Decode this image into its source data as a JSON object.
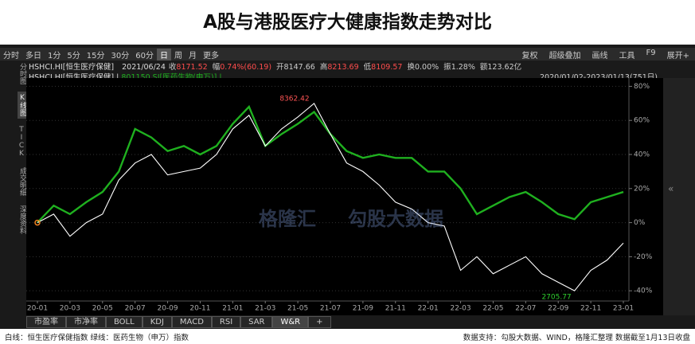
{
  "header": {
    "title": "A股与港股医疗大健康指数走势对比"
  },
  "toolbar": {
    "left": [
      "分时",
      "多日",
      "1分",
      "5分",
      "15分",
      "30分",
      "60分",
      "日",
      "周",
      "月",
      "更多"
    ],
    "active": "日",
    "right": [
      "复权",
      "超级叠加",
      "画线",
      "工具",
      "F9",
      "展开+"
    ]
  },
  "info": {
    "name": "HSHCI.HI[恒生医疗保健]",
    "date": "2021/06/24",
    "fields": [
      {
        "label": "收",
        "value": "8171.52"
      },
      {
        "label": "幅",
        "value": "0.74%(60.19)"
      },
      {
        "label": "开",
        "value": "8147.66"
      },
      {
        "label": "高",
        "value": "8213.69"
      },
      {
        "label": "低",
        "value": "8109.57"
      },
      {
        "label": "换",
        "value": "0.00%"
      },
      {
        "label": "振",
        "value": "1.28%"
      },
      {
        "label": "额",
        "value": "123.62亿"
      }
    ],
    "legend_prefix": "HSHCI.HI[恒生医疗保健] |",
    "legend_second": "801150.SI[医药生物(申万)] |",
    "range": "2020/01/02-2023/01/13(751日)"
  },
  "sidebar": [
    "分时图",
    "K线图",
    "TICK",
    "成交明细",
    "深度资料"
  ],
  "tabs": [
    "市盈率",
    "市净率",
    "BOLL",
    "KDJ",
    "MACD",
    "RSI",
    "SAR",
    "W&R",
    "+"
  ],
  "footer": {
    "left": "白线：恒生医疗保健指数 绿线：医药生物（申万）指数",
    "right": "数据支持：勾股大数据、WIND，格隆汇整理 数据截至1月13日收盘"
  },
  "watermarks": [
    "格隆汇",
    "勾股大数据"
  ],
  "chart_data": {
    "type": "line",
    "categories": [
      "20-01",
      null,
      "20-03",
      null,
      "20-05",
      null,
      "20-07",
      null,
      "20-09",
      null,
      "20-11",
      null,
      "21-01",
      null,
      "21-03",
      null,
      "21-05",
      null,
      "21-07",
      null,
      "21-09",
      null,
      "21-11",
      null,
      "22-01",
      null,
      "22-03",
      null,
      "22-05",
      null,
      "22-07",
      null,
      "22-09",
      null,
      "22-11",
      null,
      "23-01"
    ],
    "series": [
      {
        "name": "HSHCI.HI[恒生医疗保健]",
        "color": "#ffffff",
        "values": [
          0,
          5,
          -8,
          0,
          5,
          25,
          35,
          40,
          28,
          30,
          32,
          40,
          55,
          63,
          45,
          55,
          62,
          70,
          52,
          35,
          30,
          22,
          12,
          8,
          0,
          -2,
          -28,
          -20,
          -30,
          -25,
          -20,
          -30,
          -35,
          -40,
          -28,
          -22,
          -12
        ]
      },
      {
        "name": "801150.SI[医药生物(申万)]",
        "color": "#1fb01f",
        "values": [
          0,
          10,
          5,
          12,
          18,
          30,
          55,
          50,
          42,
          45,
          40,
          45,
          58,
          68,
          45,
          52,
          58,
          65,
          52,
          42,
          38,
          40,
          38,
          38,
          30,
          30,
          20,
          5,
          10,
          15,
          18,
          12,
          5,
          2,
          12,
          15,
          18
        ]
      }
    ],
    "annotations": [
      "8362.42",
      "2705.77"
    ],
    "ylim": [
      -46,
      83
    ],
    "yticks": [
      {
        "value": 80,
        "label": "80%"
      },
      {
        "value": 60,
        "label": "60%"
      },
      {
        "value": 40,
        "label": "40%"
      },
      {
        "value": 20,
        "label": "20%"
      },
      {
        "value": 0,
        "label": "0%"
      },
      {
        "value": -20,
        "label": "-20%"
      },
      {
        "value": -40,
        "label": "-40%"
      }
    ],
    "grid": true
  }
}
